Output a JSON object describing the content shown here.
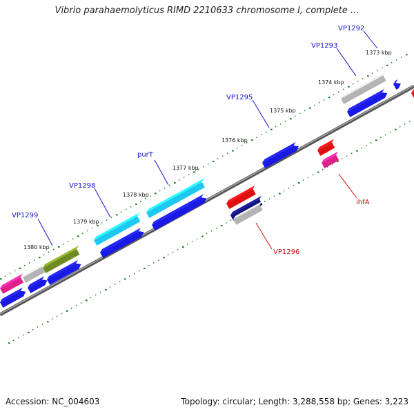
{
  "title": "Vibrio parahaemolyticus RIMD 2210633 chromosome I, complete ...",
  "footer": {
    "accession": "Accession: NC_004603",
    "summary": "Topology: circular; Length: 3,288,558 bp; Genes: 3,223"
  },
  "ticks": [
    "1373 kbp",
    "1374 kbp",
    "1375 kbp",
    "1376 kbp",
    "1377 kbp",
    "1378 kbp",
    "1379 kbp",
    "1380 kbp"
  ],
  "labels": [
    "VP1292",
    "VP1293",
    "VP1295",
    "purT",
    "VP1298",
    "VP1299",
    "ihfA",
    "VP1296"
  ],
  "colors": {
    "forward_gene": "#1a1ae6",
    "red_gene": "#e01010",
    "pink_gene": "#e0208a",
    "cyan_gene": "#1ec8f0",
    "olive_gene": "#6f8a20",
    "grey_gene": "#b4b4b4",
    "navy_gene": "#12127a",
    "label_blue": "#1010cc",
    "label_red": "#cc1010",
    "dots": "#1a7a1a"
  }
}
